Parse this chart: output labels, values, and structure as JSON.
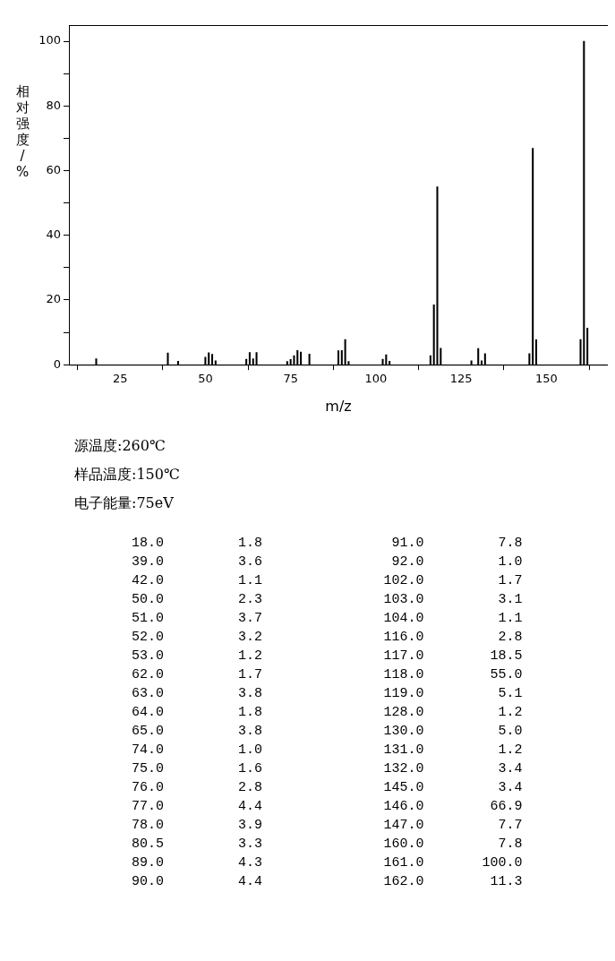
{
  "chart_data": [
    {
      "type": "bar",
      "xlabel": "m/z",
      "ylabel": "相对强度/%",
      "x": [
        18,
        39,
        42,
        50,
        51,
        52,
        53,
        62,
        63,
        64,
        65,
        74,
        75,
        76,
        77,
        78,
        80.5,
        89,
        90,
        91,
        92,
        102,
        103,
        104,
        116,
        117,
        118,
        119,
        128,
        130,
        131,
        132,
        145,
        146,
        147,
        160,
        161,
        162
      ],
      "values": [
        1.8,
        3.6,
        1.1,
        2.3,
        3.7,
        3.2,
        1.2,
        1.7,
        3.8,
        1.8,
        3.8,
        1.0,
        1.6,
        2.8,
        4.4,
        3.9,
        3.3,
        4.3,
        4.4,
        7.8,
        1.0,
        1.7,
        3.1,
        1.1,
        2.8,
        18.5,
        55.0,
        5.1,
        1.2,
        5.0,
        1.2,
        3.4,
        3.4,
        66.9,
        7.7,
        7.8,
        100.0,
        11.3
      ],
      "color": "#000000",
      "xlim": [
        10,
        168
      ],
      "xticks": [
        25,
        50,
        75,
        100,
        125,
        150
      ],
      "ylim": [
        0,
        105
      ],
      "yticks": [
        0,
        {
          "value": 10,
          "label": null
        },
        20,
        {
          "value": 30,
          "label": null
        },
        40,
        {
          "value": 50,
          "label": null
        },
        60,
        {
          "value": 70,
          "label": null
        },
        80,
        {
          "value": 90,
          "label": null
        },
        100
      ],
      "grid": false,
      "legend": false,
      "annotations": [
        "源温度:260℃",
        "样品温度:150℃",
        "电子能量:75eV"
      ]
    },
    {
      "type": "other",
      "categories": [
        "18.0",
        "39.0",
        "42.0",
        "50.0",
        "51.0",
        "52.0",
        "53.0",
        "62.0",
        "63.0",
        "64.0",
        "65.0",
        "74.0",
        "75.0",
        "76.0",
        "77.0",
        "78.0",
        "80.5",
        "89.0",
        "90.0",
        "91.0",
        "92.0",
        "102.0",
        "103.0",
        "104.0",
        "116.0",
        "117.0",
        "118.0",
        "119.0",
        "128.0",
        "130.0",
        "131.0",
        "132.0",
        "145.0",
        "146.0",
        "147.0",
        "160.0",
        "161.0",
        "162.0"
      ],
      "value_labels": [
        "1.8",
        "3.6",
        "1.1",
        "2.3",
        "3.7",
        "3.2",
        "1.2",
        "1.7",
        "3.8",
        "1.8",
        "3.8",
        "1.0",
        "1.6",
        "2.8",
        "4.4",
        "3.9",
        "3.3",
        "4.3",
        "4.4",
        "7.8",
        "1.0",
        "1.7",
        "3.1",
        "1.1",
        "2.8",
        "18.5",
        "55.0",
        "5.1",
        "1.2",
        "5.0",
        "1.2",
        "3.4",
        "3.4",
        "66.9",
        "7.7",
        "7.8",
        "100.0",
        "11.3"
      ]
    }
  ]
}
